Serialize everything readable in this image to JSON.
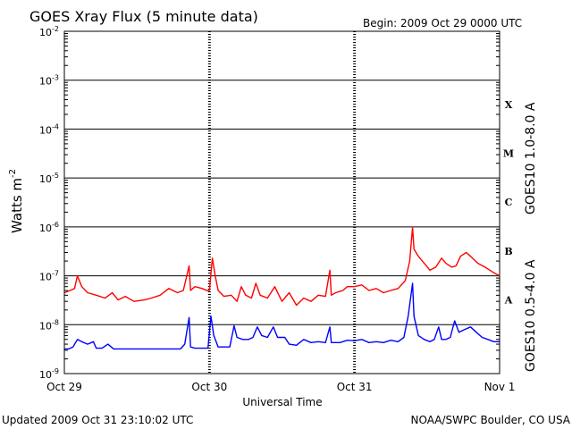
{
  "chart_data": {
    "type": "line",
    "title": "GOES Xray Flux (5 minute data)",
    "begin": "Begin:  2009 Oct 29 0000 UTC",
    "xlabel": "Universal Time",
    "ylabel": "Watts m",
    "ylabel_sup": "-2",
    "yscale": "log",
    "ylim": [
      1e-09,
      0.01
    ],
    "xlim_days": [
      0,
      3
    ],
    "x_tick_labels": [
      "Oct 29",
      "Oct 30",
      "Oct 31",
      "Nov 1"
    ],
    "y_tick_labels": [
      {
        "base": "10",
        "exp": "-9",
        "value": 1e-09
      },
      {
        "base": "10",
        "exp": "-8",
        "value": 1e-08
      },
      {
        "base": "10",
        "exp": "-7",
        "value": 1e-07
      },
      {
        "base": "10",
        "exp": "-6",
        "value": 1e-06
      },
      {
        "base": "10",
        "exp": "-5",
        "value": 1e-05
      },
      {
        "base": "10",
        "exp": "-4",
        "value": 0.0001
      },
      {
        "base": "10",
        "exp": "-3",
        "value": 0.001
      },
      {
        "base": "10",
        "exp": "-2",
        "value": 0.01
      }
    ],
    "flare_classes": [
      {
        "label": "A",
        "value": 3.2e-08
      },
      {
        "label": "B",
        "value": 3.2e-07
      },
      {
        "label": "C",
        "value": 3.2e-06
      },
      {
        "label": "M",
        "value": 3.2e-05
      },
      {
        "label": "X",
        "value": 0.00032
      }
    ],
    "grid": true,
    "series": [
      {
        "name": "GOES10 1.0-8.0 A",
        "color": "#ff0000",
        "points": [
          [
            0.0,
            4.5e-08
          ],
          [
            0.04,
            5e-08
          ],
          [
            0.07,
            5.5e-08
          ],
          [
            0.09,
            1e-07
          ],
          [
            0.12,
            6e-08
          ],
          [
            0.16,
            4.5e-08
          ],
          [
            0.22,
            4e-08
          ],
          [
            0.28,
            3.5e-08
          ],
          [
            0.33,
            4.5e-08
          ],
          [
            0.37,
            3.2e-08
          ],
          [
            0.42,
            3.8e-08
          ],
          [
            0.48,
            3e-08
          ],
          [
            0.55,
            3.2e-08
          ],
          [
            0.6,
            3.5e-08
          ],
          [
            0.66,
            4e-08
          ],
          [
            0.72,
            5.5e-08
          ],
          [
            0.78,
            4.5e-08
          ],
          [
            0.82,
            5e-08
          ],
          [
            0.86,
            1.6e-07
          ],
          [
            0.87,
            5e-08
          ],
          [
            0.9,
            6e-08
          ],
          [
            0.95,
            5.5e-08
          ],
          [
            0.98,
            5e-08
          ],
          [
            1.0,
            5e-08
          ],
          [
            1.02,
            2.3e-07
          ],
          [
            1.04,
            1e-07
          ],
          [
            1.06,
            5e-08
          ],
          [
            1.1,
            3.8e-08
          ],
          [
            1.15,
            4e-08
          ],
          [
            1.19,
            3e-08
          ],
          [
            1.22,
            6e-08
          ],
          [
            1.25,
            4e-08
          ],
          [
            1.29,
            3.5e-08
          ],
          [
            1.32,
            7e-08
          ],
          [
            1.35,
            4e-08
          ],
          [
            1.4,
            3.5e-08
          ],
          [
            1.45,
            6e-08
          ],
          [
            1.5,
            3e-08
          ],
          [
            1.55,
            4.5e-08
          ],
          [
            1.6,
            2.5e-08
          ],
          [
            1.65,
            3.5e-08
          ],
          [
            1.7,
            3e-08
          ],
          [
            1.75,
            4e-08
          ],
          [
            1.8,
            3.8e-08
          ],
          [
            1.83,
            1.3e-07
          ],
          [
            1.84,
            4e-08
          ],
          [
            1.87,
            4.5e-08
          ],
          [
            1.92,
            5e-08
          ],
          [
            1.95,
            6e-08
          ],
          [
            2.0,
            6e-08
          ],
          [
            2.05,
            6.5e-08
          ],
          [
            2.1,
            5e-08
          ],
          [
            2.15,
            5.5e-08
          ],
          [
            2.2,
            4.5e-08
          ],
          [
            2.25,
            5e-08
          ],
          [
            2.3,
            5.5e-08
          ],
          [
            2.35,
            8e-08
          ],
          [
            2.38,
            2e-07
          ],
          [
            2.4,
            9.8e-07
          ],
          [
            2.41,
            3.5e-07
          ],
          [
            2.44,
            2.5e-07
          ],
          [
            2.48,
            1.8e-07
          ],
          [
            2.52,
            1.3e-07
          ],
          [
            2.56,
            1.5e-07
          ],
          [
            2.6,
            2.3e-07
          ],
          [
            2.63,
            1.8e-07
          ],
          [
            2.67,
            1.5e-07
          ],
          [
            2.7,
            1.6e-07
          ],
          [
            2.73,
            2.5e-07
          ],
          [
            2.77,
            3e-07
          ],
          [
            2.8,
            2.5e-07
          ],
          [
            2.85,
            1.8e-07
          ],
          [
            2.9,
            1.5e-07
          ],
          [
            2.95,
            1.2e-07
          ],
          [
            3.0,
            1e-07
          ]
        ]
      },
      {
        "name": "GOES10 0.5-4.0 A",
        "color": "#0000ff",
        "points": [
          [
            0.0,
            3.2e-09
          ],
          [
            0.03,
            3.2e-09
          ],
          [
            0.06,
            3.5e-09
          ],
          [
            0.09,
            5e-09
          ],
          [
            0.12,
            4.5e-09
          ],
          [
            0.16,
            4e-09
          ],
          [
            0.2,
            4.5e-09
          ],
          [
            0.22,
            3.3e-09
          ],
          [
            0.26,
            3.3e-09
          ],
          [
            0.3,
            4e-09
          ],
          [
            0.34,
            3.2e-09
          ],
          [
            0.4,
            3.2e-09
          ],
          [
            0.5,
            3.2e-09
          ],
          [
            0.6,
            3.2e-09
          ],
          [
            0.7,
            3.2e-09
          ],
          [
            0.8,
            3.2e-09
          ],
          [
            0.83,
            4e-09
          ],
          [
            0.86,
            1.4e-08
          ],
          [
            0.87,
            3.5e-09
          ],
          [
            0.9,
            3.3e-09
          ],
          [
            0.95,
            3.3e-09
          ],
          [
            0.97,
            3.3e-09
          ],
          [
            0.99,
            3.3e-09
          ],
          [
            1.01,
            1.5e-08
          ],
          [
            1.03,
            6e-09
          ],
          [
            1.06,
            3.5e-09
          ],
          [
            1.1,
            3.5e-09
          ],
          [
            1.14,
            3.5e-09
          ],
          [
            1.17,
            9.5e-09
          ],
          [
            1.19,
            5.5e-09
          ],
          [
            1.23,
            5e-09
          ],
          [
            1.27,
            5e-09
          ],
          [
            1.3,
            5.5e-09
          ],
          [
            1.33,
            9e-09
          ],
          [
            1.36,
            6e-09
          ],
          [
            1.4,
            5.5e-09
          ],
          [
            1.44,
            9e-09
          ],
          [
            1.47,
            5.5e-09
          ],
          [
            1.52,
            5.5e-09
          ],
          [
            1.55,
            4e-09
          ],
          [
            1.6,
            3.8e-09
          ],
          [
            1.65,
            5e-09
          ],
          [
            1.7,
            4.3e-09
          ],
          [
            1.75,
            4.5e-09
          ],
          [
            1.8,
            4.3e-09
          ],
          [
            1.83,
            9e-09
          ],
          [
            1.84,
            4.3e-09
          ],
          [
            1.9,
            4.3e-09
          ],
          [
            1.95,
            4.8e-09
          ],
          [
            2.0,
            4.7e-09
          ],
          [
            2.05,
            5e-09
          ],
          [
            2.1,
            4.3e-09
          ],
          [
            2.15,
            4.5e-09
          ],
          [
            2.2,
            4.3e-09
          ],
          [
            2.25,
            4.8e-09
          ],
          [
            2.3,
            4.5e-09
          ],
          [
            2.34,
            5.5e-09
          ],
          [
            2.37,
            1.5e-08
          ],
          [
            2.4,
            7e-08
          ],
          [
            2.41,
            1.5e-08
          ],
          [
            2.44,
            6e-09
          ],
          [
            2.48,
            5e-09
          ],
          [
            2.52,
            4.5e-09
          ],
          [
            2.55,
            5e-09
          ],
          [
            2.58,
            9e-09
          ],
          [
            2.6,
            5e-09
          ],
          [
            2.63,
            5e-09
          ],
          [
            2.66,
            5.5e-09
          ],
          [
            2.69,
            1.2e-08
          ],
          [
            2.72,
            7e-09
          ],
          [
            2.76,
            8e-09
          ],
          [
            2.8,
            9e-09
          ],
          [
            2.84,
            7e-09
          ],
          [
            2.88,
            5.5e-09
          ],
          [
            2.92,
            5e-09
          ],
          [
            2.96,
            4.5e-09
          ],
          [
            3.0,
            4.5e-09
          ]
        ]
      }
    ]
  },
  "footer": {
    "updated": "Updated 2009 Oct 31 23:10:02 UTC",
    "source": "NOAA/SWPC Boulder, CO USA"
  }
}
